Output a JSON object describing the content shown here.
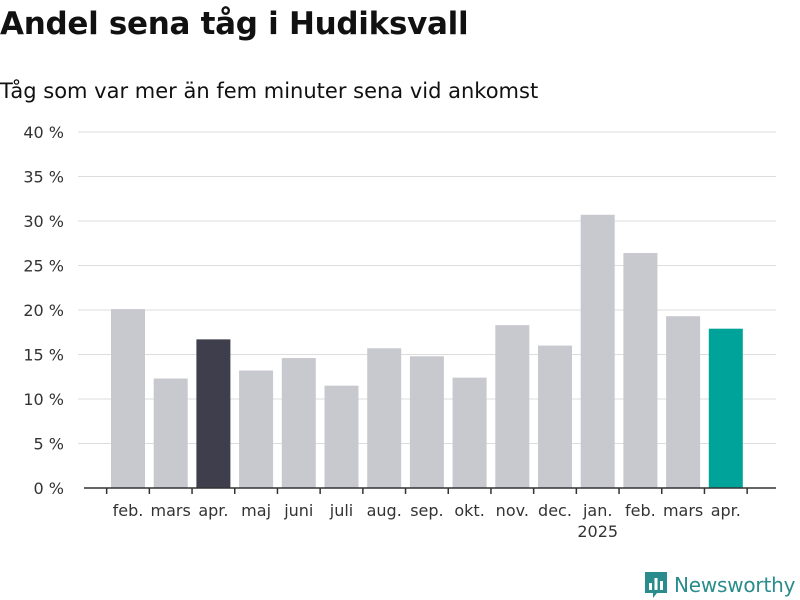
{
  "title": "Andel sena tåg i Hudiksvall",
  "subtitle": "Tåg som var mer än fem minuter sena vid ankomst",
  "chart_data": {
    "type": "bar",
    "categories": [
      "feb.",
      "mars",
      "apr.",
      "maj",
      "juni",
      "juli",
      "aug.",
      "sep.",
      "okt.",
      "nov.",
      "dec.",
      "jan.",
      "feb.",
      "mars",
      "apr."
    ],
    "year_labels": [
      {
        "index": 11,
        "label": "2025"
      }
    ],
    "values": [
      20.1,
      12.3,
      16.7,
      13.2,
      14.6,
      11.5,
      15.7,
      14.8,
      12.4,
      18.3,
      16.0,
      30.7,
      26.4,
      19.3,
      17.9
    ],
    "y_ticks": [
      0,
      5,
      10,
      15,
      20,
      25,
      30,
      35,
      40
    ],
    "y_tick_labels": [
      "0 %",
      "5 %",
      "10 %",
      "15 %",
      "20 %",
      "25 %",
      "30 %",
      "35 %",
      "40 %"
    ],
    "ylim": [
      0,
      40
    ],
    "grid": true,
    "colors": {
      "default": "#c8c8cf",
      "last_year_same_month": "#3e3e4c",
      "current": "#00a39a",
      "grid": "#dddddd",
      "axis": "#333333"
    },
    "highlight": {
      "2": "last_year_same_month",
      "14": "current"
    }
  },
  "logo": {
    "text": "Newsworthy",
    "icon": "newsworthy-chart-icon",
    "color": "#2a8c8c"
  }
}
